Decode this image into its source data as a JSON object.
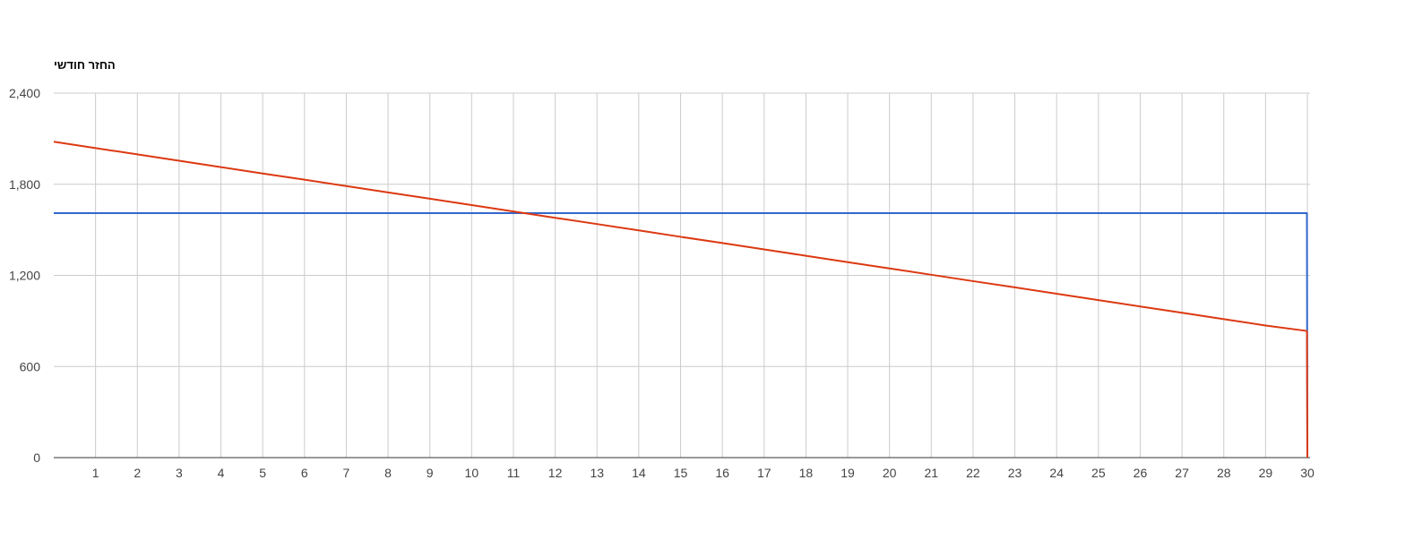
{
  "chart_data": {
    "type": "line",
    "title": "החזר חודשי",
    "xlabel": "",
    "ylabel": "",
    "x": [
      0,
      1,
      2,
      3,
      4,
      5,
      6,
      7,
      8,
      9,
      10,
      11,
      12,
      13,
      14,
      15,
      16,
      17,
      18,
      19,
      20,
      21,
      22,
      23,
      24,
      25,
      26,
      27,
      28,
      29,
      29.99,
      30
    ],
    "xlim": [
      0,
      30
    ],
    "ylim": [
      0,
      2400
    ],
    "x_ticks": [
      "1",
      "2",
      "3",
      "4",
      "5",
      "6",
      "7",
      "8",
      "9",
      "10",
      "11",
      "12",
      "13",
      "14",
      "15",
      "16",
      "17",
      "18",
      "19",
      "20",
      "21",
      "22",
      "23",
      "24",
      "25",
      "26",
      "27",
      "28",
      "29",
      "30"
    ],
    "y_ticks": [
      "0",
      "600",
      "1,200",
      "1,800",
      "2,400"
    ],
    "y_tick_values": [
      0,
      600,
      1200,
      1800,
      2400
    ],
    "grid": true,
    "legend": "none",
    "series": [
      {
        "color": "#3366cc",
        "values": [
          1610,
          1610,
          1610,
          1610,
          1610,
          1610,
          1610,
          1610,
          1610,
          1610,
          1610,
          1610,
          1610,
          1610,
          1610,
          1610,
          1610,
          1610,
          1610,
          1610,
          1610,
          1610,
          1610,
          1610,
          1610,
          1610,
          1610,
          1610,
          1610,
          1610,
          1610,
          0
        ]
      },
      {
        "color": "#dc3912",
        "values": [
          2080,
          2038,
          1997,
          1955,
          1913,
          1871,
          1830,
          1788,
          1746,
          1705,
          1663,
          1621,
          1579,
          1538,
          1496,
          1454,
          1413,
          1371,
          1329,
          1287,
          1246,
          1204,
          1162,
          1121,
          1079,
          1037,
          995,
          954,
          912,
          870,
          834,
          0
        ]
      }
    ]
  }
}
